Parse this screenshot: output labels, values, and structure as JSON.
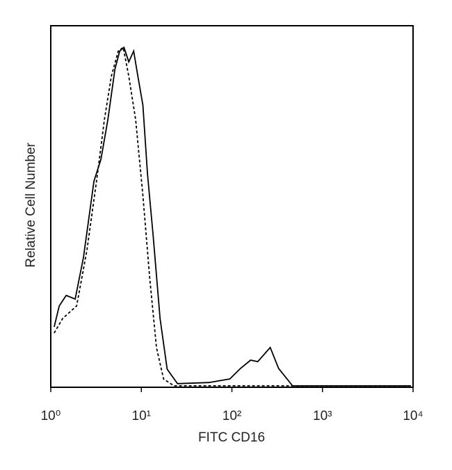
{
  "chart_data": {
    "type": "line",
    "xlabel": "FITC CD16",
    "ylabel": "Relative Cell Number",
    "xscale": "log",
    "xlim": [
      1,
      10000
    ],
    "ylim": [
      0,
      100
    ],
    "xticks": [
      {
        "value": 1,
        "label": "10⁰"
      },
      {
        "value": 10,
        "label": "10¹"
      },
      {
        "value": 100,
        "label": "10²"
      },
      {
        "value": 1000,
        "label": "10³"
      },
      {
        "value": 10000,
        "label": "10⁴"
      }
    ],
    "series": [
      {
        "color": "#000000",
        "dash": false,
        "x": [
          1.09,
          1.24,
          1.48,
          1.86,
          2.3,
          3.0,
          3.58,
          4.27,
          5.11,
          5.78,
          6.43,
          7.27,
          8.23,
          9.16,
          10.4,
          11.7,
          13.5,
          16.1,
          19.3,
          25.1,
          55.7,
          94.8,
          124,
          161,
          193,
          265,
          328,
          467,
          9490
        ],
        "values": [
          16.7,
          22.5,
          25.4,
          24.4,
          36,
          57,
          63,
          74,
          88,
          93,
          94,
          90,
          93,
          86,
          78,
          59,
          42,
          19,
          5,
          1,
          1.3,
          2.3,
          5.2,
          7.5,
          7.1,
          11,
          5.2,
          0.4,
          0.4
        ]
      },
      {
        "color": "#000000",
        "dash": true,
        "x": [
          1.09,
          1.35,
          1.93,
          2.51,
          3.28,
          3.91,
          4.66,
          5.57,
          6.31,
          7.27,
          8.66,
          10.4,
          12.4,
          14.7,
          17.6,
          22.9,
          9490
        ],
        "values": [
          15,
          19,
          22.5,
          38,
          59,
          74,
          86,
          93,
          94,
          86,
          74,
          53,
          30,
          11,
          2.3,
          0.4,
          0.4
        ]
      }
    ]
  }
}
